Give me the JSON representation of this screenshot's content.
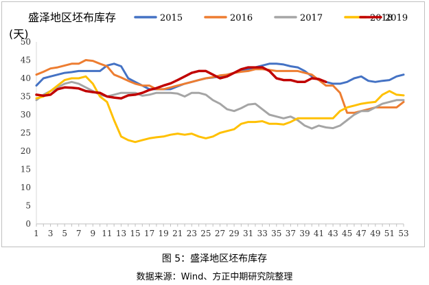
{
  "caption": "图 5：盛泽地区坯布库存",
  "source": "数据来源：Wind、方正中期研究院整理",
  "chart_data": {
    "type": "line",
    "title": "盛泽地区坯布库存",
    "ylabel": "(天)",
    "xlabel": "",
    "ylim": [
      0,
      50
    ],
    "yticks": [
      0,
      5,
      10,
      15,
      20,
      25,
      30,
      35,
      40,
      45,
      50
    ],
    "xlim": [
      1,
      53
    ],
    "xticks": [
      1,
      3,
      5,
      7,
      9,
      11,
      13,
      15,
      17,
      19,
      21,
      23,
      25,
      27,
      29,
      31,
      33,
      35,
      37,
      39,
      41,
      43,
      45,
      47,
      49,
      51,
      53
    ],
    "grid": false,
    "legend_position": "top",
    "series": [
      {
        "name": "2015",
        "color": "#4472c4",
        "values": [
          38,
          40,
          40.5,
          41,
          41.5,
          41.7,
          42,
          42,
          42,
          42,
          43.5,
          44,
          43.3,
          40,
          39,
          38,
          37,
          37,
          37,
          37,
          37.8,
          38.5,
          39,
          39.5,
          40,
          40.2,
          40.5,
          41,
          41.5,
          42,
          42.5,
          43,
          43.5,
          44,
          44,
          43.8,
          43.3,
          43,
          42,
          40.5,
          39.5,
          39,
          38.5,
          38.5,
          39,
          40,
          40.5,
          39.3,
          39,
          39.3,
          39.5,
          40.5,
          41
        ]
      },
      {
        "name": "2016",
        "color": "#ed7d31",
        "values": [
          41,
          41.8,
          42.7,
          43,
          43.5,
          44,
          44,
          45,
          44.8,
          44,
          43.3,
          41,
          40.2,
          39.3,
          38.5,
          38,
          38,
          37,
          37,
          37.5,
          38,
          38.5,
          39,
          39.5,
          40,
          40.3,
          40.8,
          41,
          41.5,
          41.8,
          42,
          42.5,
          42.5,
          42.3,
          42,
          42,
          42,
          42,
          41.5,
          41,
          39.5,
          38,
          38,
          36,
          30.5,
          30.5,
          31,
          31.5,
          32,
          32,
          32,
          32,
          33.5
        ]
      },
      {
        "name": "2017",
        "color": "#a5a5a5",
        "values": [
          34,
          35.5,
          36.5,
          37.5,
          38.5,
          39,
          38.5,
          37.5,
          36.5,
          35.5,
          35,
          35.5,
          36,
          36,
          36,
          35.2,
          35.5,
          36,
          36,
          36,
          35.8,
          35,
          36,
          36,
          35.5,
          34,
          33,
          31.5,
          31,
          31.8,
          32.8,
          33,
          31.5,
          30,
          29.5,
          29,
          29.5,
          28.5,
          27,
          26.2,
          27,
          26.5,
          26.3,
          27,
          28.5,
          30,
          31,
          31,
          32,
          33,
          33.5,
          34,
          34
        ]
      },
      {
        "name": "2018",
        "color": "#ffc000",
        "values": [
          34.5,
          35,
          36.5,
          38,
          39.5,
          40,
          40,
          40.5,
          38.5,
          35,
          33.5,
          28.5,
          24,
          23,
          22.5,
          23,
          23.5,
          23.8,
          24,
          24.5,
          24.8,
          24.5,
          24.8,
          24,
          23.5,
          24,
          25,
          25.5,
          26,
          27.5,
          28,
          28,
          28.2,
          27.5,
          27.5,
          27.3,
          28,
          29,
          29,
          29,
          29,
          29,
          29,
          31,
          32,
          32.5,
          33,
          33.3,
          33.5,
          35.5,
          36.5,
          35.5,
          35.3
        ]
      },
      {
        "name": "2019",
        "color": "#c00000",
        "values": [
          35.5,
          35.2,
          35.5,
          37,
          37.5,
          37.4,
          37.2,
          36.5,
          36.2,
          36,
          35,
          34.7,
          34.5,
          35.3,
          35.5,
          36,
          36.8,
          37.3,
          38,
          38.6,
          39.5,
          40.5,
          41.5,
          42,
          42,
          41,
          40,
          40.5,
          41.5,
          42.5,
          43,
          43,
          43,
          42,
          40,
          39.5,
          39.5,
          39,
          39,
          40,
          39.8,
          39
        ]
      }
    ]
  }
}
